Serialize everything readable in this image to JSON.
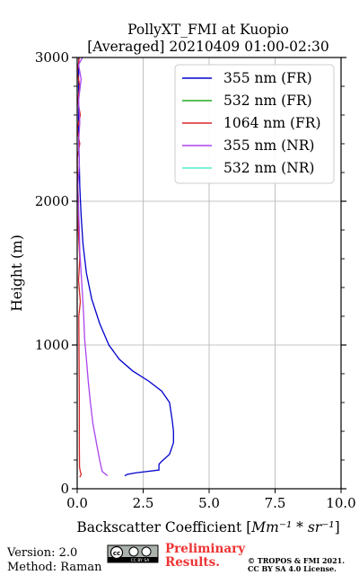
{
  "chart_data": {
    "type": "line",
    "title": "PollyXT_FMI at Kuopio",
    "subtitle": "[Averaged] 20210409 01:00-02:30",
    "xlabel_prefix": "Backscatter Coefficient [",
    "xlabel_units": "Mm⁻¹ * sr⁻¹",
    "xlabel_suffix": "]",
    "ylabel": "Height (m)",
    "xlim": [
      0,
      10
    ],
    "ylim": [
      0,
      3000
    ],
    "xticks": [
      "0.0",
      "2.5",
      "5.0",
      "7.5",
      "10.0"
    ],
    "xtick_values": [
      0,
      2.5,
      5,
      7.5,
      10
    ],
    "yticks": [
      "0",
      "1000",
      "2000",
      "3000"
    ],
    "ytick_values": [
      0,
      1000,
      2000,
      3000
    ],
    "grid": true,
    "legend_position": "top-right",
    "series": [
      {
        "name": "355 nm (FR)",
        "color": "#0000cc",
        "points": [
          [
            1.8,
            90
          ],
          [
            1.9,
            100
          ],
          [
            2.2,
            110
          ],
          [
            3.1,
            130
          ],
          [
            3.1,
            170
          ],
          [
            3.2,
            190
          ],
          [
            3.5,
            240
          ],
          [
            3.65,
            320
          ],
          [
            3.65,
            400
          ],
          [
            3.6,
            480
          ],
          [
            3.5,
            600
          ],
          [
            3.2,
            680
          ],
          [
            2.7,
            750
          ],
          [
            2.1,
            820
          ],
          [
            1.6,
            900
          ],
          [
            1.2,
            1000
          ],
          [
            0.85,
            1150
          ],
          [
            0.55,
            1320
          ],
          [
            0.35,
            1500
          ],
          [
            0.22,
            1700
          ],
          [
            0.15,
            1900
          ],
          [
            0.1,
            2100
          ],
          [
            0.08,
            2250
          ],
          [
            0.06,
            2400
          ],
          [
            0.05,
            2550
          ],
          [
            0.05,
            2700
          ],
          [
            0.05,
            2850
          ],
          [
            0.06,
            3000
          ]
        ]
      },
      {
        "name": "532 nm (FR)",
        "color": "#22aa22",
        "points": []
      },
      {
        "name": "1064 nm (FR)",
        "color": "#d62728",
        "points": [
          [
            0.1,
            80
          ],
          [
            0.15,
            100
          ],
          [
            0.12,
            120
          ],
          [
            0.09,
            150
          ],
          [
            0.08,
            300
          ],
          [
            0.08,
            600
          ],
          [
            0.07,
            900
          ],
          [
            0.06,
            1200
          ],
          [
            0.12,
            1300
          ],
          [
            0.05,
            1450
          ],
          [
            0.1,
            1600
          ],
          [
            0.04,
            1800
          ],
          [
            0.05,
            2000
          ],
          [
            0.02,
            2100
          ],
          [
            0.0,
            2300
          ],
          [
            0.1,
            2400
          ],
          [
            0.0,
            2500
          ],
          [
            0.12,
            2600
          ],
          [
            0.02,
            2700
          ],
          [
            0.1,
            2800
          ],
          [
            0.0,
            2900
          ],
          [
            0.08,
            3000
          ]
        ]
      },
      {
        "name": "355 nm (NR)",
        "color": "#aa44ee",
        "points": [
          [
            1.15,
            90
          ],
          [
            0.95,
            120
          ],
          [
            0.85,
            200
          ],
          [
            0.75,
            300
          ],
          [
            0.6,
            450
          ],
          [
            0.5,
            600
          ],
          [
            0.42,
            750
          ],
          [
            0.35,
            900
          ],
          [
            0.28,
            1050
          ],
          [
            0.25,
            1200
          ],
          [
            0.2,
            1350
          ],
          [
            0.15,
            1500
          ],
          [
            0.1,
            1650
          ],
          [
            0.08,
            1800
          ],
          [
            0.05,
            1950
          ],
          [
            0.02,
            2100
          ],
          [
            0.08,
            2250
          ],
          [
            0.05,
            2400
          ],
          [
            0.1,
            2550
          ],
          [
            0.05,
            2700
          ],
          [
            0.15,
            2850
          ],
          [
            0.05,
            2950
          ],
          [
            0.2,
            3000
          ]
        ]
      },
      {
        "name": "532 nm (NR)",
        "color": "#55eecc",
        "points": []
      }
    ]
  },
  "footer": {
    "version": "Version: 2.0",
    "method": "Method: Raman",
    "license_badge": "CC BY SA",
    "preliminary_line1": "Preliminary",
    "preliminary_line2": "Results.",
    "copyright_line1": "© TROPOS & FMI 2021.",
    "copyright_line2": "CC BY SA 4.0 License.",
    "prelim_color": "#ee3333"
  }
}
